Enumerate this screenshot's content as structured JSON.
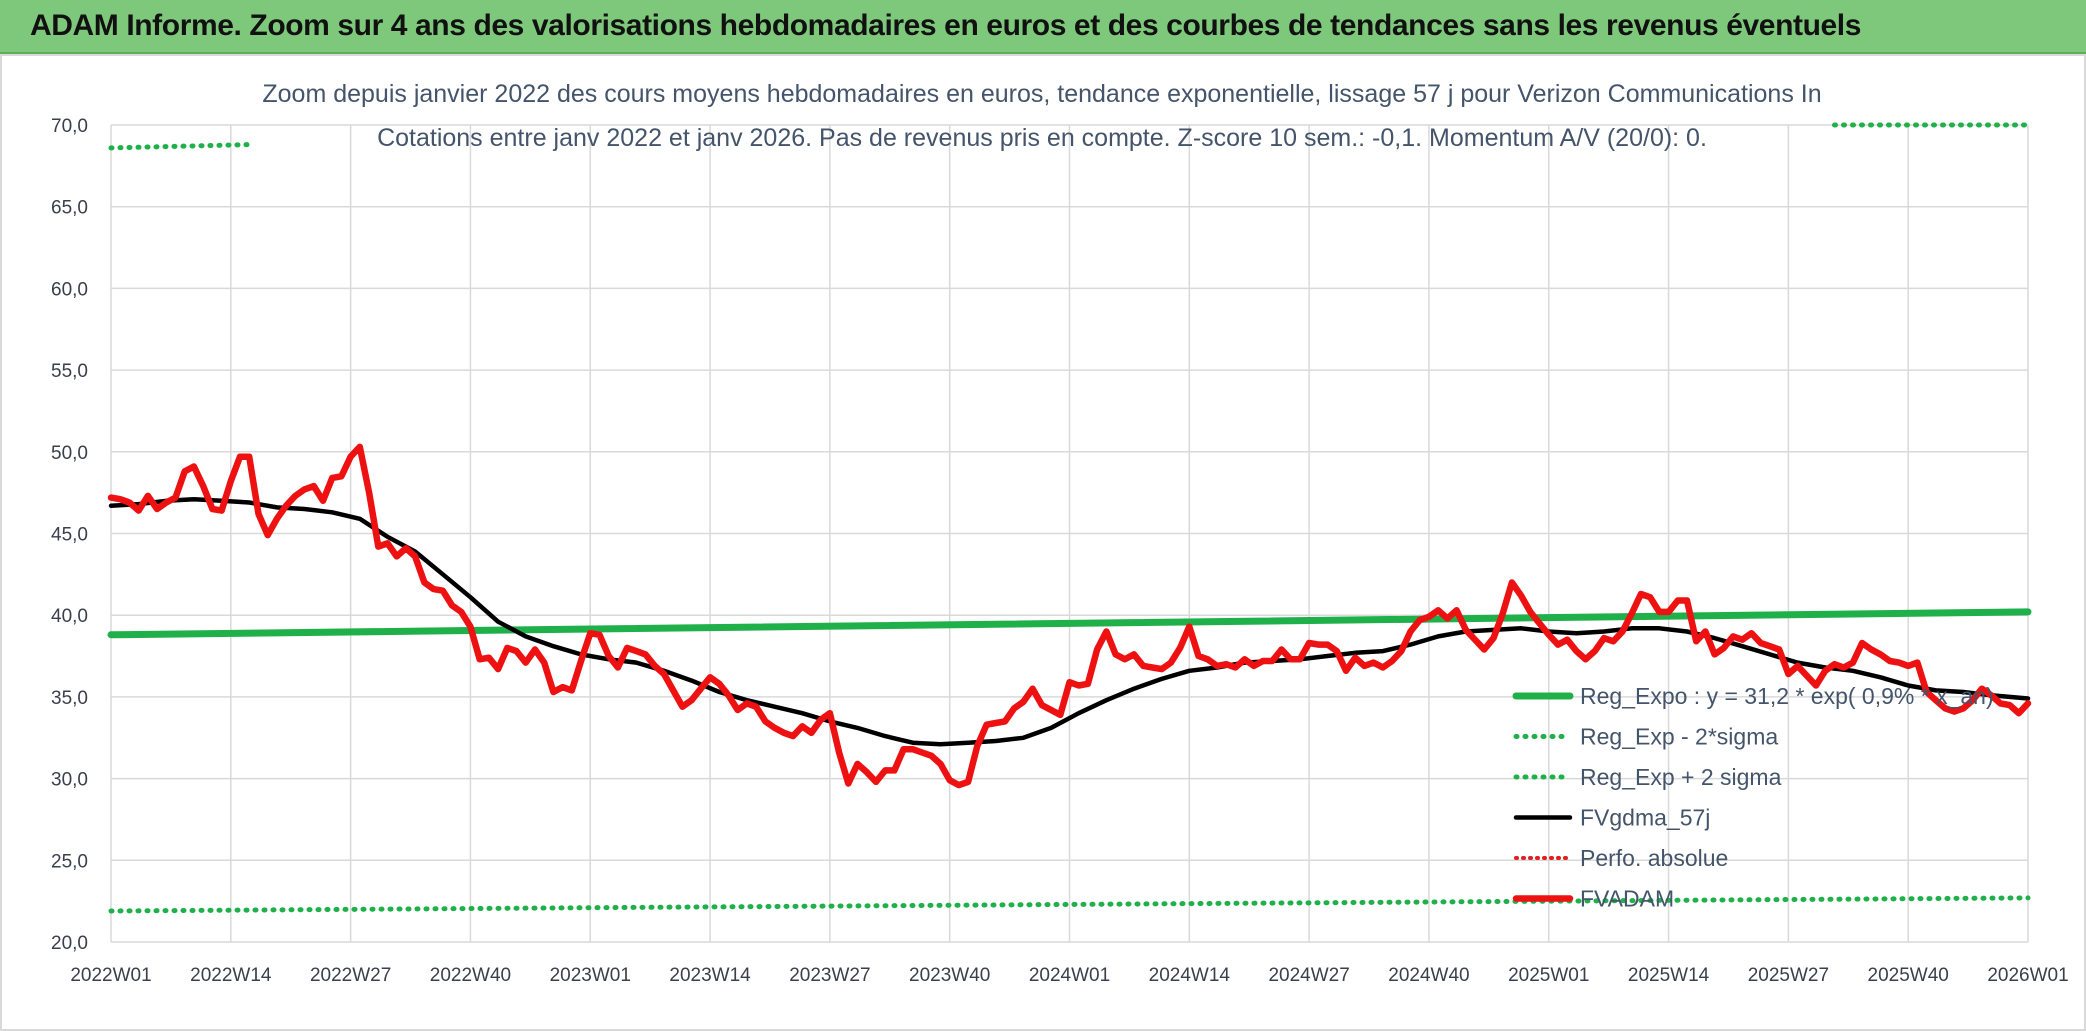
{
  "banner": {
    "title": "ADAM Informe. Zoom sur 4 ans des valorisations hebdomadaires en euros et des courbes de tendances sans les revenus éventuels"
  },
  "colors": {
    "banner_bg": "#7ec87b",
    "reg_expo": "#1fb04a",
    "sigma": "#1fb04a",
    "fvgdma": "#000000",
    "perfo": "#e02020",
    "fvadam": "#ee1111",
    "grid": "#d9d9d9"
  },
  "chart_data": {
    "type": "line",
    "title_line1": "Zoom depuis janvier 2022 des cours moyens hebdomadaires en euros, tendance exponentielle, lissage 57 j pour Verizon Communications In",
    "title_line2": "Cotations entre janv 2022 et janv 2026. Pas de revenus pris en compte. Z-score 10 sem.: -0,1. Momentum A/V (20/0): 0.",
    "ylim": [
      20,
      70
    ],
    "yticks": [
      "20,0",
      "25,0",
      "30,0",
      "35,0",
      "40,0",
      "45,0",
      "50,0",
      "55,0",
      "60,0",
      "65,0",
      "70,0"
    ],
    "xticks": [
      "2022W01",
      "2022W14",
      "2022W27",
      "2022W40",
      "2023W01",
      "2023W14",
      "2023W27",
      "2023W40",
      "2024W01",
      "2024W14",
      "2024W27",
      "2024W40",
      "2025W01",
      "2025W14",
      "2025W27",
      "2025W40",
      "2026W01"
    ],
    "weeks_per_tick": 13,
    "legend_position": "right",
    "series": [
      {
        "name": "Reg_Expo : y = 31,2 * exp( 0,9% * x_an)",
        "key": "reg_expo",
        "style": "solid-thick",
        "points": [
          [
            0,
            38.8
          ],
          [
            208,
            40.2
          ]
        ]
      },
      {
        "name": "Reg_Exp - 2*sigma",
        "key": "sigma_low",
        "style": "dotted",
        "points": [
          [
            0,
            21.9
          ],
          [
            208,
            22.7
          ]
        ]
      },
      {
        "name": "Reg_Exp + 2 sigma",
        "key": "sigma_high",
        "style": "dotted",
        "segments": [
          [
            [
              0,
              68.6
            ],
            [
              15,
              68.8
            ]
          ],
          [
            [
              187,
              70.0
            ],
            [
              208,
              70.0
            ]
          ]
        ]
      },
      {
        "name": "FVgdma_57j",
        "key": "fvgdma",
        "style": "solid",
        "points": [
          [
            0,
            46.7
          ],
          [
            3,
            46.8
          ],
          [
            6,
            47.0
          ],
          [
            9,
            47.1
          ],
          [
            12,
            47.0
          ],
          [
            15,
            46.9
          ],
          [
            18,
            46.6
          ],
          [
            21,
            46.5
          ],
          [
            24,
            46.3
          ],
          [
            27,
            45.9
          ],
          [
            30,
            44.8
          ],
          [
            33,
            43.9
          ],
          [
            36,
            42.5
          ],
          [
            39,
            41.1
          ],
          [
            42,
            39.6
          ],
          [
            45,
            38.7
          ],
          [
            48,
            38.1
          ],
          [
            51,
            37.6
          ],
          [
            54,
            37.3
          ],
          [
            57,
            37.1
          ],
          [
            60,
            36.6
          ],
          [
            63,
            36.0
          ],
          [
            66,
            35.3
          ],
          [
            69,
            34.8
          ],
          [
            72,
            34.4
          ],
          [
            75,
            34.0
          ],
          [
            78,
            33.5
          ],
          [
            81,
            33.1
          ],
          [
            84,
            32.6
          ],
          [
            87,
            32.2
          ],
          [
            90,
            32.1
          ],
          [
            93,
            32.2
          ],
          [
            96,
            32.3
          ],
          [
            99,
            32.5
          ],
          [
            102,
            33.1
          ],
          [
            105,
            34.0
          ],
          [
            108,
            34.8
          ],
          [
            111,
            35.5
          ],
          [
            114,
            36.1
          ],
          [
            117,
            36.6
          ],
          [
            120,
            36.8
          ],
          [
            123,
            37.1
          ],
          [
            126,
            37.2
          ],
          [
            129,
            37.3
          ],
          [
            132,
            37.5
          ],
          [
            135,
            37.7
          ],
          [
            138,
            37.8
          ],
          [
            141,
            38.2
          ],
          [
            144,
            38.7
          ],
          [
            147,
            39.0
          ],
          [
            150,
            39.1
          ],
          [
            153,
            39.2
          ],
          [
            156,
            39.0
          ],
          [
            159,
            38.9
          ],
          [
            162,
            39.0
          ],
          [
            165,
            39.2
          ],
          [
            168,
            39.2
          ],
          [
            171,
            39.0
          ],
          [
            174,
            38.6
          ],
          [
            177,
            38.1
          ],
          [
            180,
            37.6
          ],
          [
            183,
            37.1
          ],
          [
            186,
            36.8
          ],
          [
            189,
            36.6
          ],
          [
            192,
            36.2
          ],
          [
            195,
            35.7
          ],
          [
            198,
            35.4
          ],
          [
            201,
            35.3
          ],
          [
            204,
            35.1
          ],
          [
            208,
            34.9
          ]
        ]
      },
      {
        "name": "Perfo. absolue",
        "key": "perfo",
        "style": "dotted",
        "points": []
      },
      {
        "name": "FVADAM",
        "key": "fvadam",
        "style": "solid-thick",
        "points": [
          [
            0,
            47.2
          ],
          [
            1,
            47.1
          ],
          [
            2,
            46.9
          ],
          [
            3,
            46.4
          ],
          [
            4,
            47.3
          ],
          [
            5,
            46.5
          ],
          [
            6,
            46.9
          ],
          [
            7,
            47.2
          ],
          [
            8,
            48.8
          ],
          [
            9,
            49.1
          ],
          [
            10,
            47.9
          ],
          [
            11,
            46.5
          ],
          [
            12,
            46.4
          ],
          [
            13,
            48.2
          ],
          [
            14,
            49.7
          ],
          [
            15,
            49.7
          ],
          [
            16,
            46.2
          ],
          [
            17,
            44.9
          ],
          [
            18,
            45.9
          ],
          [
            19,
            46.7
          ],
          [
            20,
            47.3
          ],
          [
            21,
            47.7
          ],
          [
            22,
            47.9
          ],
          [
            23,
            47.0
          ],
          [
            24,
            48.4
          ],
          [
            25,
            48.5
          ],
          [
            26,
            49.7
          ],
          [
            27,
            50.3
          ],
          [
            28,
            47.5
          ],
          [
            29,
            44.2
          ],
          [
            30,
            44.4
          ],
          [
            31,
            43.6
          ],
          [
            32,
            44.1
          ],
          [
            33,
            43.6
          ],
          [
            34,
            42.0
          ],
          [
            35,
            41.6
          ],
          [
            36,
            41.5
          ],
          [
            37,
            40.6
          ],
          [
            38,
            40.2
          ],
          [
            39,
            39.3
          ],
          [
            40,
            37.3
          ],
          [
            41,
            37.4
          ],
          [
            42,
            36.7
          ],
          [
            43,
            38.0
          ],
          [
            44,
            37.8
          ],
          [
            45,
            37.1
          ],
          [
            46,
            37.9
          ],
          [
            47,
            37.1
          ],
          [
            48,
            35.3
          ],
          [
            49,
            35.6
          ],
          [
            50,
            35.4
          ],
          [
            51,
            37.2
          ],
          [
            52,
            38.9
          ],
          [
            53,
            38.8
          ],
          [
            54,
            37.5
          ],
          [
            55,
            36.8
          ],
          [
            56,
            38.0
          ],
          [
            57,
            37.8
          ],
          [
            58,
            37.6
          ],
          [
            59,
            36.9
          ],
          [
            60,
            36.4
          ],
          [
            61,
            35.4
          ],
          [
            62,
            34.4
          ],
          [
            63,
            34.8
          ],
          [
            64,
            35.5
          ],
          [
            65,
            36.2
          ],
          [
            66,
            35.8
          ],
          [
            67,
            35.1
          ],
          [
            68,
            34.2
          ],
          [
            69,
            34.6
          ],
          [
            70,
            34.4
          ],
          [
            71,
            33.5
          ],
          [
            72,
            33.1
          ],
          [
            73,
            32.8
          ],
          [
            74,
            32.6
          ],
          [
            75,
            33.2
          ],
          [
            76,
            32.8
          ],
          [
            77,
            33.6
          ],
          [
            78,
            34.0
          ],
          [
            79,
            31.6
          ],
          [
            80,
            29.7
          ],
          [
            81,
            30.9
          ],
          [
            82,
            30.4
          ],
          [
            83,
            29.8
          ],
          [
            84,
            30.5
          ],
          [
            85,
            30.5
          ],
          [
            86,
            31.8
          ],
          [
            87,
            31.8
          ],
          [
            88,
            31.6
          ],
          [
            89,
            31.4
          ],
          [
            90,
            30.9
          ],
          [
            91,
            29.9
          ],
          [
            92,
            29.6
          ],
          [
            93,
            29.8
          ],
          [
            94,
            32.0
          ],
          [
            95,
            33.3
          ],
          [
            96,
            33.4
          ],
          [
            97,
            33.5
          ],
          [
            98,
            34.3
          ],
          [
            99,
            34.7
          ],
          [
            100,
            35.5
          ],
          [
            101,
            34.5
          ],
          [
            102,
            34.2
          ],
          [
            103,
            33.9
          ],
          [
            104,
            35.9
          ],
          [
            105,
            35.7
          ],
          [
            106,
            35.8
          ],
          [
            107,
            37.9
          ],
          [
            108,
            39.0
          ],
          [
            109,
            37.6
          ],
          [
            110,
            37.3
          ],
          [
            111,
            37.6
          ],
          [
            112,
            36.9
          ],
          [
            113,
            36.8
          ],
          [
            114,
            36.7
          ],
          [
            115,
            37.1
          ],
          [
            116,
            38.0
          ],
          [
            117,
            39.3
          ],
          [
            118,
            37.5
          ],
          [
            119,
            37.3
          ],
          [
            120,
            36.9
          ],
          [
            121,
            37.0
          ],
          [
            122,
            36.8
          ],
          [
            123,
            37.3
          ],
          [
            124,
            36.9
          ],
          [
            125,
            37.2
          ],
          [
            126,
            37.2
          ],
          [
            127,
            37.9
          ],
          [
            128,
            37.3
          ],
          [
            129,
            37.3
          ],
          [
            130,
            38.3
          ],
          [
            131,
            38.2
          ],
          [
            132,
            38.2
          ],
          [
            133,
            37.8
          ],
          [
            134,
            36.6
          ],
          [
            135,
            37.4
          ],
          [
            136,
            36.9
          ],
          [
            137,
            37.1
          ],
          [
            138,
            36.8
          ],
          [
            139,
            37.2
          ],
          [
            140,
            37.8
          ],
          [
            141,
            39.0
          ],
          [
            142,
            39.7
          ],
          [
            143,
            39.9
          ],
          [
            144,
            40.3
          ],
          [
            145,
            39.8
          ],
          [
            146,
            40.3
          ],
          [
            147,
            39.1
          ],
          [
            148,
            38.5
          ],
          [
            149,
            37.9
          ],
          [
            150,
            38.6
          ],
          [
            151,
            40.1
          ],
          [
            152,
            42.0
          ],
          [
            153,
            41.2
          ],
          [
            154,
            40.2
          ],
          [
            155,
            39.5
          ],
          [
            156,
            38.8
          ],
          [
            157,
            38.2
          ],
          [
            158,
            38.5
          ],
          [
            159,
            37.8
          ],
          [
            160,
            37.3
          ],
          [
            161,
            37.8
          ],
          [
            162,
            38.6
          ],
          [
            163,
            38.4
          ],
          [
            164,
            39.0
          ],
          [
            165,
            40.1
          ],
          [
            166,
            41.3
          ],
          [
            167,
            41.1
          ],
          [
            168,
            40.2
          ],
          [
            169,
            40.2
          ],
          [
            170,
            40.9
          ],
          [
            171,
            40.9
          ],
          [
            172,
            38.4
          ],
          [
            173,
            39.0
          ],
          [
            174,
            37.6
          ],
          [
            175,
            38.0
          ],
          [
            176,
            38.7
          ],
          [
            177,
            38.5
          ],
          [
            178,
            38.9
          ],
          [
            179,
            38.3
          ],
          [
            180,
            38.1
          ],
          [
            181,
            37.9
          ],
          [
            182,
            36.4
          ],
          [
            183,
            36.9
          ],
          [
            184,
            36.3
          ],
          [
            185,
            35.7
          ],
          [
            186,
            36.6
          ],
          [
            187,
            37.0
          ],
          [
            188,
            36.8
          ],
          [
            189,
            37.1
          ],
          [
            190,
            38.3
          ],
          [
            191,
            37.9
          ],
          [
            192,
            37.6
          ],
          [
            193,
            37.2
          ],
          [
            194,
            37.1
          ],
          [
            195,
            36.9
          ],
          [
            196,
            37.1
          ],
          [
            197,
            35.3
          ],
          [
            198,
            34.8
          ],
          [
            199,
            34.3
          ],
          [
            200,
            34.1
          ],
          [
            201,
            34.3
          ],
          [
            202,
            34.8
          ],
          [
            203,
            35.5
          ],
          [
            204,
            35.1
          ],
          [
            205,
            34.6
          ],
          [
            206,
            34.5
          ],
          [
            207,
            34.0
          ],
          [
            208,
            34.6
          ]
        ]
      }
    ]
  }
}
